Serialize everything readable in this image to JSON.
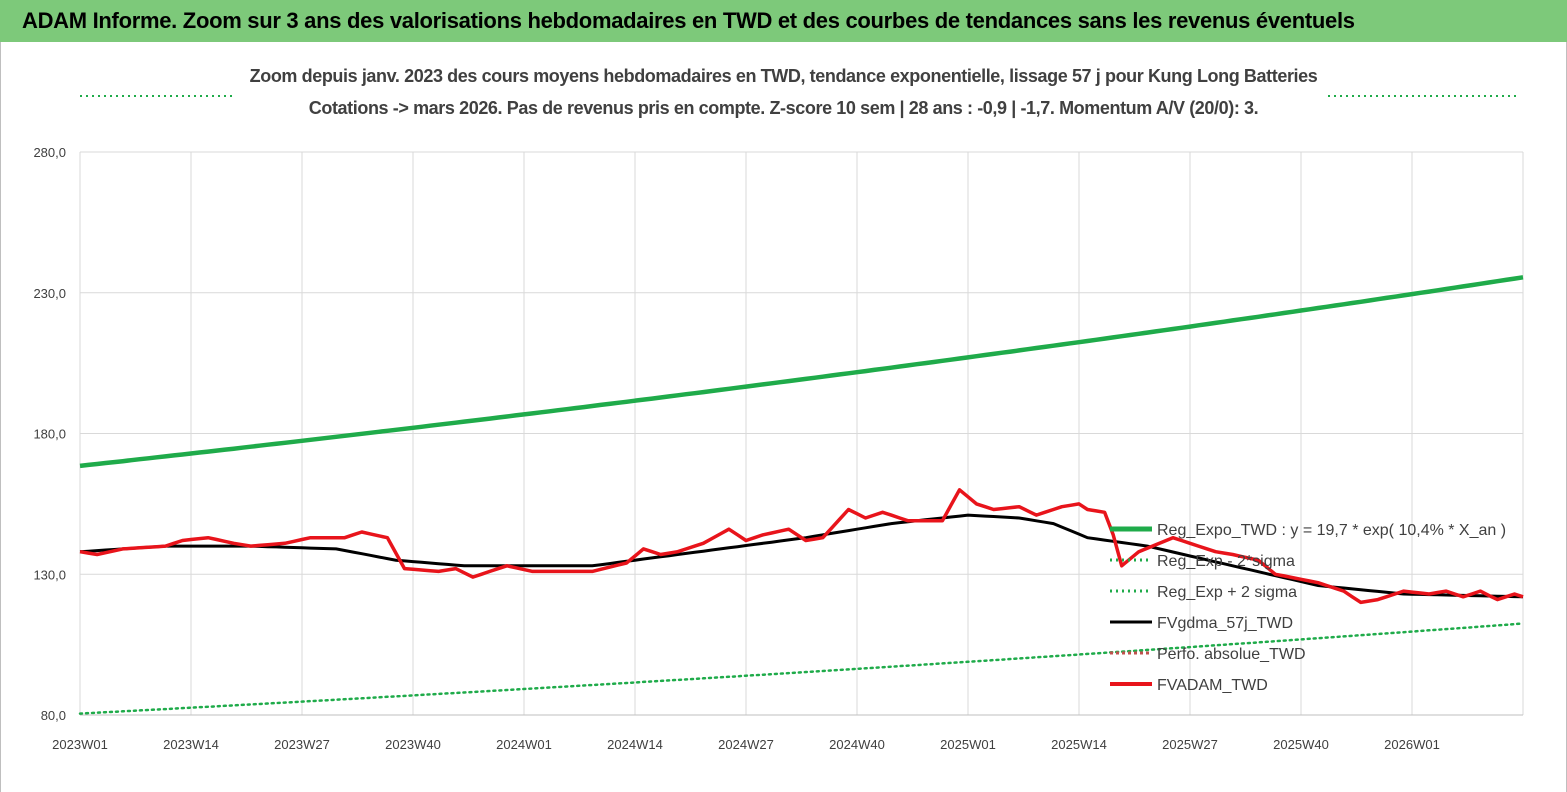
{
  "header": {
    "title": "ADAM Informe. Zoom sur 3 ans des valorisations hebdomadaires en TWD et des courbes de tendances sans les revenus éventuels"
  },
  "chart_data": {
    "type": "line",
    "title_line1": "Zoom depuis janv. 2023 des cours moyens hebdomadaires en TWD, tendance exponentielle, lissage 57 j pour Kung Long Batteries",
    "title_line2": "Cotations -> mars 2026. Pas de revenus pris en compte. Z-score 10 sem | 28 ans : -0,9 | -1,7. Momentum A/V (20/0): 3.",
    "x_tick_labels": [
      "2023W01",
      "2023W14",
      "2023W27",
      "2023W40",
      "2024W01",
      "2024W14",
      "2024W27",
      "2024W40",
      "2025W01",
      "2025W14",
      "2025W27",
      "2025W40",
      "2026W01"
    ],
    "x_tick_index": [
      0,
      13,
      26,
      39,
      52,
      65,
      78,
      91,
      104,
      117,
      130,
      143,
      156
    ],
    "y_tick_labels": [
      "80,0",
      "130,0",
      "180,0",
      "230,0",
      "280,0"
    ],
    "ylim": [
      80,
      280
    ],
    "n_points": 170,
    "grid": true,
    "legend_position": "right",
    "colors": {
      "reg_expo": "#1fab4a",
      "sigma": "#1fab4a",
      "fvgdma": "#000000",
      "fvadam": "#e8141b",
      "perfo": "#c0504d"
    },
    "series": [
      {
        "name": "Reg_Expo_TWD : y = 19,7 * exp( 10,4% *  X_an )",
        "start": 168.5,
        "end": 235.5
      },
      {
        "name": "Reg_Exp - 2*sigma"
      },
      {
        "name": "Reg_Exp + 2 sigma",
        "start": 80.5,
        "end": 112.5
      },
      {
        "name": "FVgdma_57j_TWD",
        "anchors": [
          [
            0,
            138
          ],
          [
            10,
            140
          ],
          [
            20,
            140
          ],
          [
            30,
            139
          ],
          [
            37,
            135
          ],
          [
            45,
            133
          ],
          [
            60,
            133
          ],
          [
            70,
            137
          ],
          [
            85,
            143
          ],
          [
            95,
            148
          ],
          [
            104,
            151
          ],
          [
            110,
            150
          ],
          [
            114,
            148
          ],
          [
            118,
            143
          ],
          [
            125,
            140
          ],
          [
            135,
            133
          ],
          [
            145,
            126
          ],
          [
            155,
            123
          ],
          [
            169,
            122
          ]
        ]
      },
      {
        "name": "Perfo. absolue_TWD"
      },
      {
        "name": "FVADAM_TWD",
        "anchors": [
          [
            0,
            138
          ],
          [
            2,
            137
          ],
          [
            5,
            139
          ],
          [
            10,
            140
          ],
          [
            12,
            142
          ],
          [
            15,
            143
          ],
          [
            18,
            141
          ],
          [
            20,
            140
          ],
          [
            24,
            141
          ],
          [
            27,
            143
          ],
          [
            31,
            143
          ],
          [
            33,
            145
          ],
          [
            36,
            143
          ],
          [
            38,
            132
          ],
          [
            42,
            131
          ],
          [
            44,
            132
          ],
          [
            46,
            129
          ],
          [
            50,
            133
          ],
          [
            53,
            131
          ],
          [
            57,
            131
          ],
          [
            60,
            131
          ],
          [
            64,
            134
          ],
          [
            66,
            139
          ],
          [
            68,
            137
          ],
          [
            70,
            138
          ],
          [
            73,
            141
          ],
          [
            76,
            146
          ],
          [
            78,
            142
          ],
          [
            80,
            144
          ],
          [
            83,
            146
          ],
          [
            85,
            142
          ],
          [
            87,
            143
          ],
          [
            90,
            153
          ],
          [
            92,
            150
          ],
          [
            94,
            152
          ],
          [
            97,
            149
          ],
          [
            101,
            149
          ],
          [
            103,
            160
          ],
          [
            105,
            155
          ],
          [
            107,
            153
          ],
          [
            110,
            154
          ],
          [
            112,
            151
          ],
          [
            115,
            154
          ],
          [
            117,
            155
          ],
          [
            118,
            153
          ],
          [
            120,
            152
          ],
          [
            121,
            144
          ],
          [
            122,
            133
          ],
          [
            124,
            138
          ],
          [
            128,
            143
          ],
          [
            131,
            140
          ],
          [
            133,
            138
          ],
          [
            135,
            137
          ],
          [
            138,
            135
          ],
          [
            140,
            130
          ],
          [
            145,
            127
          ],
          [
            148,
            124
          ],
          [
            150,
            120
          ],
          [
            152,
            121
          ],
          [
            155,
            124
          ],
          [
            158,
            123
          ],
          [
            160,
            124
          ],
          [
            162,
            122
          ],
          [
            164,
            124
          ],
          [
            166,
            121
          ],
          [
            168,
            123
          ],
          [
            169,
            122
          ]
        ]
      }
    ]
  }
}
